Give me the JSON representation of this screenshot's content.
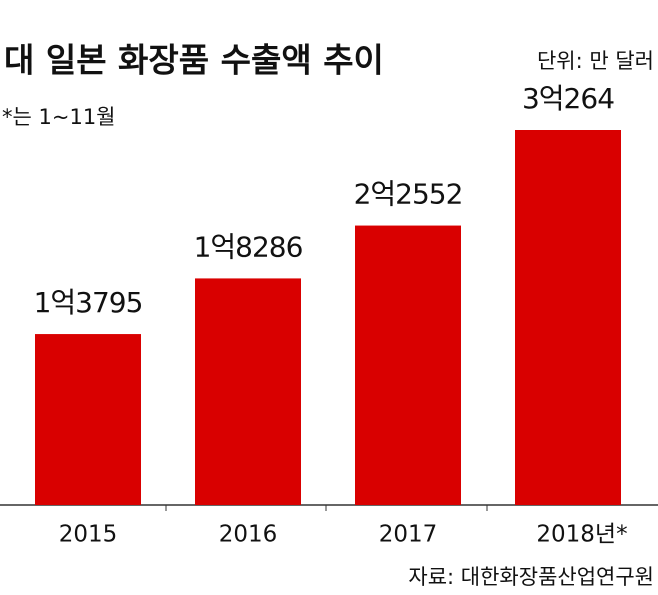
{
  "chart_data": {
    "type": "bar",
    "title": "대 일본 화장품 수출액 추이",
    "unit": "단위: 만 달러",
    "note": "*는 1~11월",
    "source": "자료: 대한화장품산업연구원",
    "categories": [
      "2015",
      "2016",
      "2017",
      "2018년*"
    ],
    "values": [
      13795,
      18286,
      22552,
      30264
    ],
    "value_labels": [
      "1억3795",
      "1억8286",
      "2억2552",
      "3억264"
    ],
    "color": "#d90000"
  }
}
